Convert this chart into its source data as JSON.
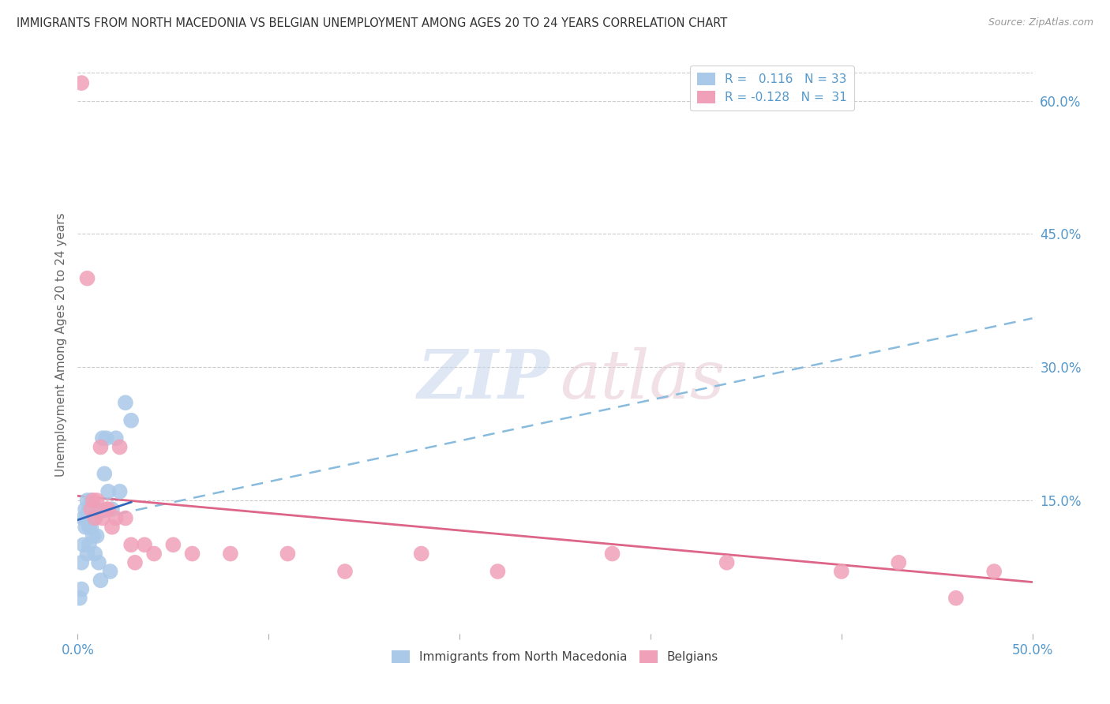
{
  "title": "IMMIGRANTS FROM NORTH MACEDONIA VS BELGIAN UNEMPLOYMENT AMONG AGES 20 TO 24 YEARS CORRELATION CHART",
  "source": "Source: ZipAtlas.com",
  "ylabel": "Unemployment Among Ages 20 to 24 years",
  "xlim": [
    0.0,
    0.5
  ],
  "ylim": [
    0.0,
    0.65
  ],
  "xtick_vals": [
    0.0,
    0.1,
    0.2,
    0.3,
    0.4,
    0.5
  ],
  "xtick_labels": [
    "0.0%",
    "",
    "",
    "",
    "",
    "50.0%"
  ],
  "ytick_labels_right": [
    "15.0%",
    "30.0%",
    "45.0%",
    "60.0%"
  ],
  "yticks_right": [
    0.15,
    0.3,
    0.45,
    0.6
  ],
  "R_blue": 0.116,
  "N_blue": 33,
  "R_pink": -0.128,
  "N_pink": 31,
  "blue_color": "#aac8e8",
  "pink_color": "#f0a0b8",
  "blue_line_color": "#3366bb",
  "blue_dash_color": "#88bbdd",
  "pink_line_color": "#dd6688",
  "axis_label_color": "#5599cc",
  "grid_color": "#cccccc",
  "blue_line_x": [
    0.0,
    0.5
  ],
  "blue_line_y": [
    0.125,
    0.355
  ],
  "pink_line_x": [
    0.0,
    0.5
  ],
  "pink_line_y": [
    0.155,
    0.058
  ],
  "blue_scatter_x": [
    0.001,
    0.002,
    0.002,
    0.003,
    0.003,
    0.004,
    0.004,
    0.005,
    0.005,
    0.005,
    0.006,
    0.006,
    0.006,
    0.007,
    0.007,
    0.008,
    0.008,
    0.009,
    0.009,
    0.01,
    0.01,
    0.011,
    0.012,
    0.013,
    0.014,
    0.015,
    0.016,
    0.017,
    0.018,
    0.02,
    0.022,
    0.025,
    0.028
  ],
  "blue_scatter_y": [
    0.04,
    0.08,
    0.05,
    0.13,
    0.1,
    0.14,
    0.12,
    0.15,
    0.13,
    0.09,
    0.14,
    0.12,
    0.1,
    0.15,
    0.12,
    0.14,
    0.11,
    0.13,
    0.09,
    0.14,
    0.11,
    0.08,
    0.06,
    0.22,
    0.18,
    0.22,
    0.16,
    0.07,
    0.14,
    0.22,
    0.16,
    0.26,
    0.24
  ],
  "pink_scatter_x": [
    0.002,
    0.005,
    0.007,
    0.008,
    0.009,
    0.01,
    0.012,
    0.013,
    0.015,
    0.016,
    0.018,
    0.02,
    0.022,
    0.025,
    0.028,
    0.03,
    0.035,
    0.04,
    0.05,
    0.06,
    0.08,
    0.11,
    0.14,
    0.18,
    0.22,
    0.28,
    0.34,
    0.4,
    0.43,
    0.46,
    0.48
  ],
  "pink_scatter_y": [
    0.62,
    0.4,
    0.14,
    0.15,
    0.13,
    0.15,
    0.21,
    0.13,
    0.14,
    0.14,
    0.12,
    0.13,
    0.21,
    0.13,
    0.1,
    0.08,
    0.1,
    0.09,
    0.1,
    0.09,
    0.09,
    0.09,
    0.07,
    0.09,
    0.07,
    0.09,
    0.08,
    0.07,
    0.08,
    0.04,
    0.07
  ]
}
